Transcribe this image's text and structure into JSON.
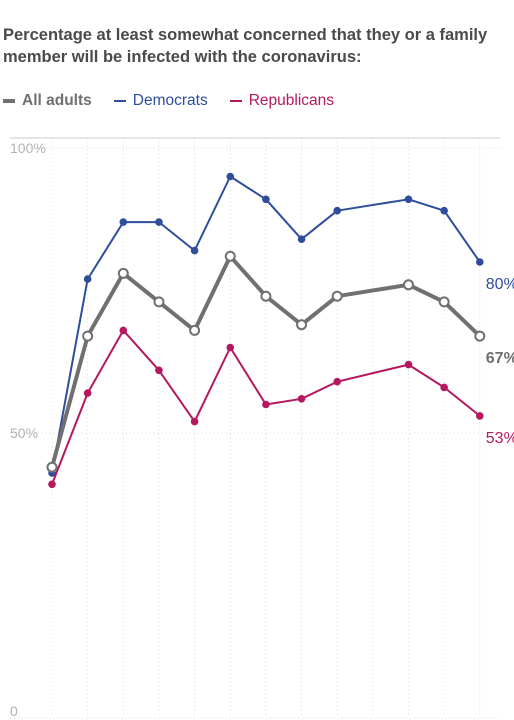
{
  "title": "Percentage at least somewhat concerned that they or a family member will be infected with the coronavirus:",
  "legend": [
    {
      "label": "All adults",
      "color": "#707070"
    },
    {
      "label": "Democrats",
      "color": "#2e4e9c"
    },
    {
      "label": "Republicans",
      "color": "#b5185e"
    }
  ],
  "chart_data": {
    "type": "line",
    "title": "Percentage at least somewhat concerned that they or a family member will be infected with the coronavirus:",
    "xlabel": "",
    "ylabel": "",
    "ylim": [
      0,
      100
    ],
    "yticks": [
      0,
      50,
      100
    ],
    "ytick_labels": [
      "0",
      "50%",
      "100%"
    ],
    "grid": true,
    "legend_position": "top-left",
    "x": [
      1,
      2,
      3,
      4,
      5,
      6,
      7,
      8,
      9,
      10,
      11,
      12,
      13
    ],
    "series": [
      {
        "name": "All adults",
        "color": "#707070",
        "marker": "open-circle",
        "values": [
          44,
          67,
          78,
          73,
          68,
          81,
          74,
          69,
          74,
          null,
          76,
          73,
          67
        ],
        "end_label": "67%"
      },
      {
        "name": "Democrats",
        "color": "#2e4e9c",
        "marker": "dot",
        "values": [
          43,
          77,
          87,
          87,
          82,
          95,
          91,
          84,
          89,
          null,
          91,
          89,
          80
        ],
        "end_label": "80%"
      },
      {
        "name": "Republicans",
        "color": "#b5185e",
        "marker": "dot",
        "values": [
          41,
          57,
          68,
          61,
          52,
          65,
          55,
          56,
          59,
          null,
          62,
          58,
          53
        ],
        "end_label": "53%"
      }
    ]
  }
}
